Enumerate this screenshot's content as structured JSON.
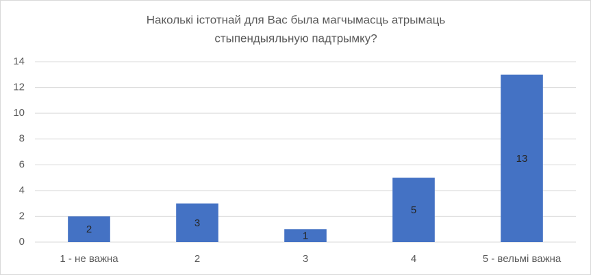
{
  "chart_data": {
    "type": "bar",
    "title": [
      "Наколькі істотнай для Вас была магчымасць атрымаць",
      "стыпендыяльную падтрымку?"
    ],
    "categories": [
      "1 - не важна",
      "2",
      "3",
      "4",
      "5 - вельмі важна"
    ],
    "values": [
      2,
      3,
      1,
      5,
      13
    ],
    "color": "#4472c4",
    "ylim": [
      0,
      14
    ],
    "yticks": [
      0,
      2,
      4,
      6,
      8,
      10,
      12,
      14
    ],
    "grid": true
  }
}
